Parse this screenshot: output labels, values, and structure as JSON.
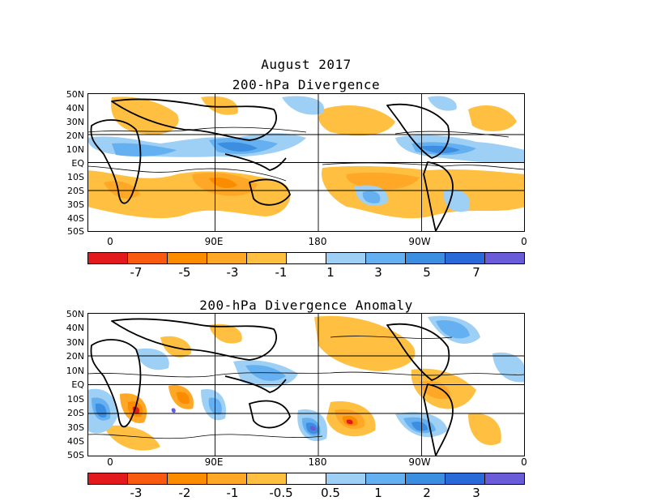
{
  "header": {
    "month": "August 2017"
  },
  "panels": [
    {
      "title": "200-hPa Divergence"
    },
    {
      "title": "200-hPa Divergence Anomaly"
    }
  ],
  "lat_labels": [
    "50N",
    "40N",
    "30N",
    "20N",
    "10N",
    "EQ",
    "10S",
    "20S",
    "30S",
    "40S",
    "50S"
  ],
  "lon_labels": [
    "0",
    "90E",
    "180",
    "90W",
    "0"
  ],
  "colorbar1": {
    "labels": [
      "-7",
      "-5",
      "-3",
      "-1",
      "1",
      "3",
      "5",
      "7"
    ],
    "colors": [
      "#e31a1c",
      "#f85a10",
      "#fb8c00",
      "#ffa726",
      "#ffbf40",
      "#ffffff",
      "#9ecff5",
      "#64b0f0",
      "#3c8ee0",
      "#2a6ad8",
      "#6a5cd8"
    ]
  },
  "colorbar2": {
    "labels": [
      "-3",
      "-2",
      "-1",
      "-0.5",
      "0.5",
      "1",
      "2",
      "3"
    ],
    "colors": [
      "#e31a1c",
      "#f85a10",
      "#fb8c00",
      "#ffa726",
      "#ffbf40",
      "#ffffff",
      "#9ecff5",
      "#64b0f0",
      "#3c8ee0",
      "#2a6ad8",
      "#6a5cd8"
    ]
  },
  "legend_colors": {
    "orange_light": "#ffbf40",
    "orange": "#ffa726",
    "orange_dark": "#fb8c00",
    "red": "#e31a1c",
    "blue_light": "#9ecff5",
    "blue": "#64b0f0",
    "blue_dark": "#3c8ee0",
    "purple": "#6a5cd8"
  }
}
